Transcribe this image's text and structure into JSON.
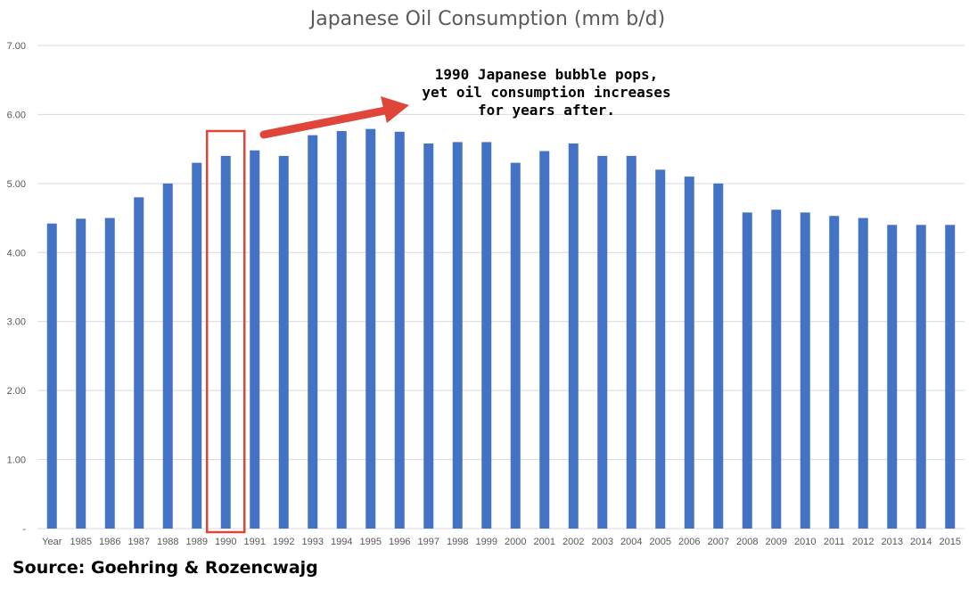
{
  "chart_data": {
    "type": "bar",
    "title": "Japanese Oil Consumption (mm b/d)",
    "xlabel": "",
    "ylabel": "",
    "categories": [
      "Year",
      "1985",
      "1986",
      "1987",
      "1988",
      "1989",
      "1990",
      "1991",
      "1992",
      "1993",
      "1994",
      "1995",
      "1996",
      "1997",
      "1998",
      "1999",
      "2000",
      "2001",
      "2002",
      "2003",
      "2004",
      "2005",
      "2006",
      "2007",
      "2008",
      "2009",
      "2010",
      "2011",
      "2012",
      "2013",
      "2014",
      "2015"
    ],
    "values": [
      4.42,
      4.49,
      4.5,
      4.8,
      5.0,
      5.3,
      5.4,
      5.48,
      5.4,
      5.7,
      5.76,
      5.79,
      5.75,
      5.58,
      5.6,
      5.6,
      5.3,
      5.47,
      5.58,
      5.4,
      5.4,
      5.2,
      5.1,
      5.0,
      4.58,
      4.62,
      4.58,
      4.53,
      4.5,
      4.4,
      4.4,
      4.4
    ],
    "ylim": [
      0,
      7
    ],
    "yticks": [
      "-",
      "1.00",
      "2.00",
      "3.00",
      "4.00",
      "5.00",
      "6.00",
      "7.00"
    ],
    "grid": true,
    "legend": "none",
    "bar_color": "#4472c4",
    "highlight_category": "1990",
    "highlight_color": "#e0453a",
    "annotation": {
      "lines": [
        "1990 Japanese bubble pops,",
        "yet oil consumption increases",
        "for years after."
      ],
      "arrow_color": "#e0453a"
    }
  },
  "source_text": "Source:  Goehring & Rozencwajg"
}
